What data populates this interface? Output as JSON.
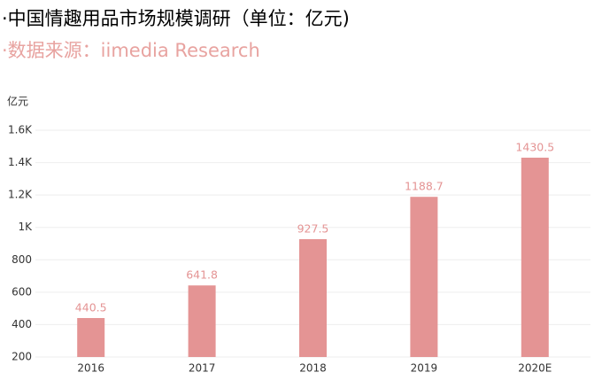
{
  "chart_data": {
    "type": "bar",
    "title": "·中国情趣用品市场规模调研（单位：亿元)",
    "subtitle": "·数据来源：iimedia Research",
    "y_axis_label": "亿元",
    "categories": [
      "2016",
      "2017",
      "2018",
      "2019",
      "2020E"
    ],
    "values": [
      440.5,
      641.8,
      927.5,
      1188.7,
      1430.5
    ],
    "color": "#e49494",
    "ylim": [
      200,
      1600
    ],
    "yticks": [
      200,
      400,
      600,
      800,
      {
        "value": 1000,
        "label": "1K"
      },
      {
        "value": 1200,
        "label": "1.2K"
      },
      {
        "value": 1400,
        "label": "1.4K"
      },
      {
        "value": 1600,
        "label": "1.6K"
      }
    ],
    "grid": true
  }
}
